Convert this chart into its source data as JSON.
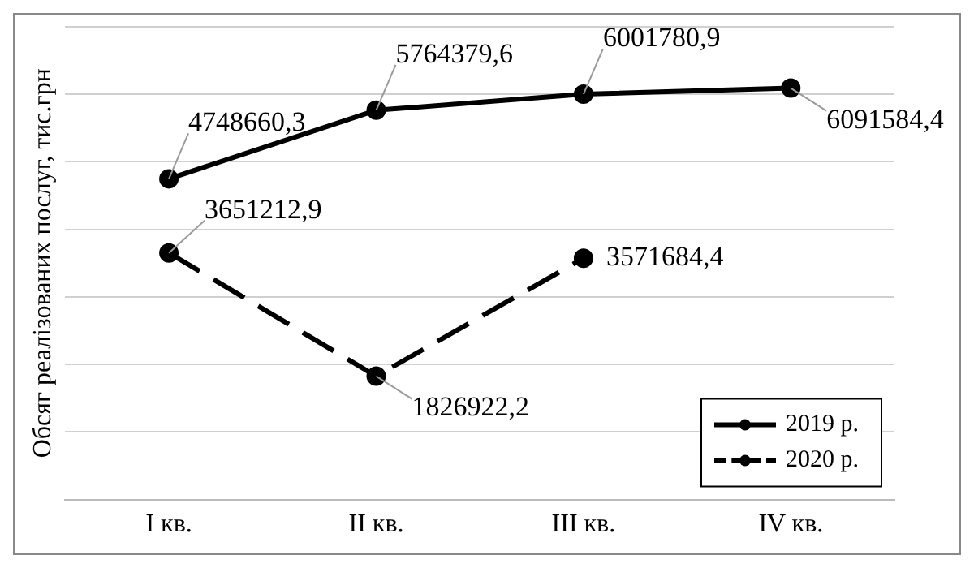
{
  "chart_data": {
    "type": "line",
    "ylabel": "Обсяг реалізованих послуг, тис.грн",
    "categories": [
      "I кв.",
      "II кв.",
      "III кв.",
      "IV кв."
    ],
    "series": [
      {
        "name": "2019 р.",
        "color": "#000000",
        "line_style": "solid",
        "values": [
          4748660.3,
          5764379.6,
          6001780.9,
          6091584.4
        ],
        "value_labels": [
          "4748660,3",
          "5764379,6",
          "6001780,9",
          "6091584,4"
        ]
      },
      {
        "name": "2020 р.",
        "color": "#000000",
        "line_style": "dashed",
        "values": [
          3651212.9,
          1826922.2,
          3571684.4,
          null
        ],
        "value_labels": [
          "3651212,9",
          "1826922,2",
          "3571684,4",
          null
        ]
      }
    ],
    "tick_labels": "x",
    "grid": "y",
    "legend": "bottom right",
    "marker": "circle"
  }
}
